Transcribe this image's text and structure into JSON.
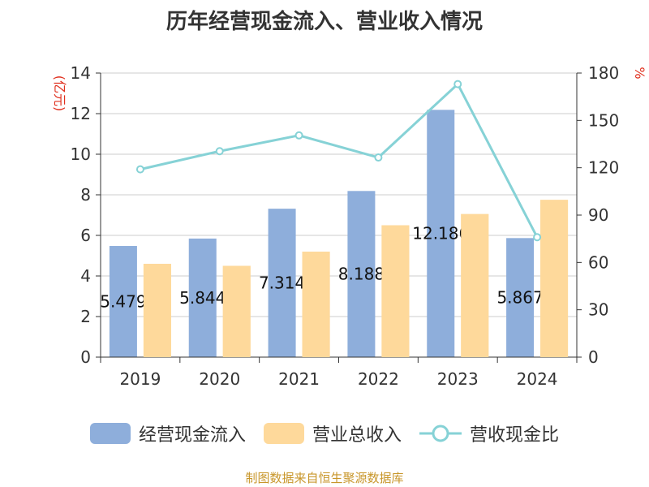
{
  "chart_data": {
    "type": "bar",
    "title": "历年经营现金流入、营业收入情况",
    "categories": [
      "2019",
      "2020",
      "2021",
      "2022",
      "2023",
      "2024"
    ],
    "left_axis": {
      "label": "(亿元)",
      "range": [
        0,
        14
      ],
      "ticks": [
        0,
        2,
        4,
        6,
        8,
        10,
        12,
        14
      ]
    },
    "right_axis": {
      "label": "%",
      "range": [
        0,
        180
      ],
      "ticks": [
        0,
        30,
        60,
        90,
        120,
        150,
        180
      ]
    },
    "series": [
      {
        "name": "经营现金流入",
        "type": "bar",
        "axis": "left",
        "color": "#8eaedb",
        "values": [
          5.479,
          5.844,
          7.314,
          8.188,
          12.186,
          5.867
        ],
        "labels": [
          "5.479",
          "5.844",
          "7.314",
          "8.188",
          "12.186",
          "5.867"
        ]
      },
      {
        "name": "营业总收入",
        "type": "bar",
        "axis": "left",
        "color": "#fed99b",
        "values": [
          4.6,
          4.5,
          5.2,
          6.5,
          7.05,
          7.75
        ]
      },
      {
        "name": "营收现金比",
        "type": "line",
        "axis": "right",
        "color": "#86d2d6",
        "values": [
          119,
          130.5,
          140.5,
          126.5,
          173,
          76
        ]
      }
    ],
    "grid": true,
    "legend_position": "bottom"
  },
  "footer": "制图数据来自恒生聚源数据库"
}
